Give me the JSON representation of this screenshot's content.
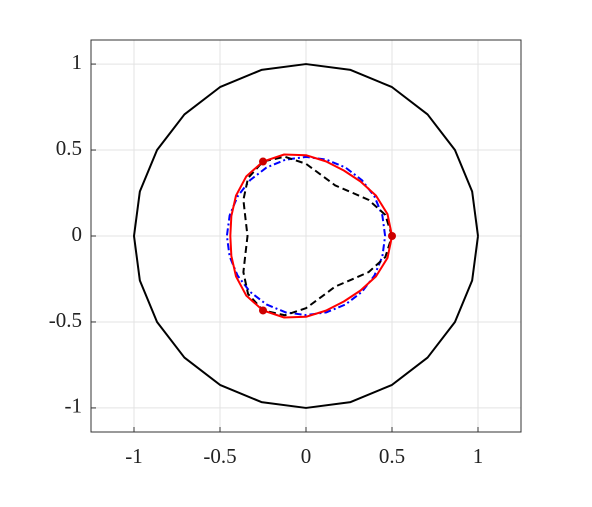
{
  "chart_data": {
    "type": "line",
    "xlim": [
      -1.25,
      1.25
    ],
    "ylim": [
      -1.14,
      1.14
    ],
    "xticks": [
      -1,
      -0.5,
      0,
      0.5,
      1
    ],
    "yticks": [
      -1,
      -0.5,
      0,
      0.5,
      1
    ],
    "grid": true,
    "series": [
      {
        "color": "#000000",
        "style": "solid",
        "x": [
          1,
          0.966,
          0.866,
          0.707,
          0.5,
          0.259,
          0,
          -0.259,
          -0.5,
          -0.707,
          -0.866,
          -0.966,
          -1,
          -0.966,
          -0.866,
          -0.707,
          -0.5,
          -0.259,
          0,
          0.259,
          0.5,
          0.707,
          0.866,
          0.966,
          1
        ],
        "y": [
          0,
          0.259,
          0.5,
          0.707,
          0.866,
          0.966,
          1,
          0.966,
          0.866,
          0.707,
          0.5,
          0.259,
          0,
          -0.259,
          -0.5,
          -0.707,
          -0.866,
          -0.966,
          -1,
          -0.966,
          -0.866,
          -0.707,
          -0.5,
          -0.259,
          0
        ]
      },
      {
        "color": "#0000ff",
        "style": "dashdot",
        "x": [
          0.46,
          0.444,
          0.398,
          0.325,
          0.23,
          0.119,
          0,
          -0.119,
          -0.23,
          -0.325,
          -0.398,
          -0.444,
          -0.46,
          -0.444,
          -0.398,
          -0.325,
          -0.23,
          -0.119,
          0,
          0.119,
          0.23,
          0.325,
          0.398,
          0.444,
          0.46
        ],
        "y": [
          0,
          0.119,
          0.23,
          0.325,
          0.398,
          0.444,
          0.46,
          0.444,
          0.398,
          0.325,
          0.23,
          0.119,
          0,
          -0.119,
          -0.23,
          -0.325,
          -0.398,
          -0.444,
          -0.46,
          -0.444,
          -0.398,
          -0.325,
          -0.23,
          -0.119,
          0
        ]
      },
      {
        "color": "#000000",
        "style": "dashed",
        "x": [
          0.5,
          0.461,
          0.364,
          0.257,
          0.17,
          0.094,
          0,
          -0.123,
          -0.25,
          -0.337,
          -0.364,
          -0.351,
          -0.34,
          -0.351,
          -0.364,
          -0.337,
          -0.25,
          -0.123,
          0,
          0.094,
          0.17,
          0.257,
          0.364,
          0.461,
          0.5
        ],
        "y": [
          0,
          0.123,
          0.21,
          0.257,
          0.294,
          0.351,
          0.42,
          0.461,
          0.433,
          0.337,
          0.21,
          0.094,
          0,
          -0.094,
          -0.21,
          -0.337,
          -0.433,
          -0.461,
          -0.42,
          -0.351,
          -0.294,
          -0.257,
          -0.21,
          -0.123,
          0
        ]
      },
      {
        "color": "#ff0000",
        "style": "solid",
        "x": [
          0.5,
          0.474,
          0.407,
          0.317,
          0.22,
          0.116,
          0,
          -0.127,
          -0.25,
          -0.347,
          -0.407,
          -0.434,
          -0.44,
          -0.434,
          -0.407,
          -0.347,
          -0.25,
          -0.127,
          0,
          0.116,
          0.22,
          0.317,
          0.407,
          0.474,
          0.5
        ],
        "y": [
          0,
          0.127,
          0.235,
          0.317,
          0.381,
          0.434,
          0.47,
          0.474,
          0.433,
          0.347,
          0.235,
          0.116,
          0,
          -0.116,
          -0.235,
          -0.347,
          -0.433,
          -0.474,
          -0.47,
          -0.434,
          -0.381,
          -0.317,
          -0.235,
          -0.127,
          0
        ]
      },
      {
        "color": "#cc0000",
        "style": "markers",
        "x": [
          0.5,
          -0.25,
          -0.25
        ],
        "y": [
          0,
          0.433,
          -0.433
        ]
      }
    ]
  }
}
